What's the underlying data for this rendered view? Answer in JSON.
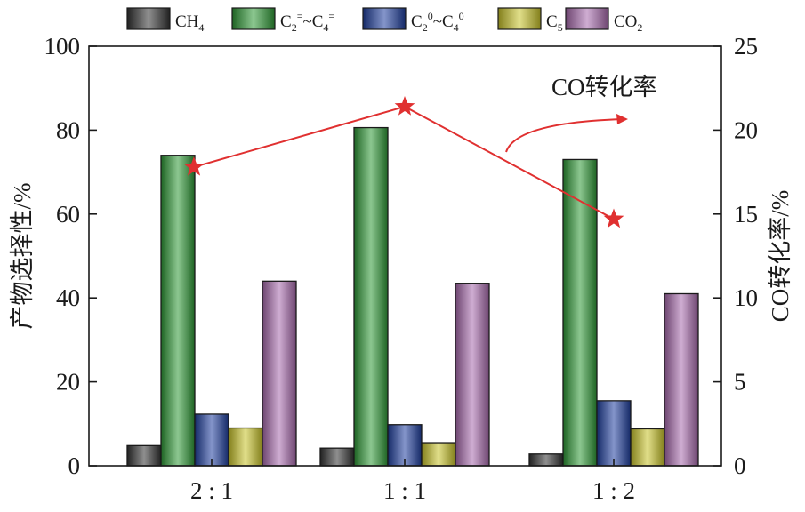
{
  "chart_data": {
    "type": "bar",
    "categories": [
      "2 : 1",
      "1 : 1",
      "1 : 2"
    ],
    "series": [
      {
        "name": "CH4",
        "legend_main": "CH",
        "legend_sub": "4",
        "legend_sup": "",
        "legend_tail": "",
        "values": [
          4.8,
          4.2,
          2.8
        ],
        "color": "#333333"
      },
      {
        "name": "C2=~C4=",
        "legend_main": "C",
        "legend_sub": "2",
        "legend_sup": "=",
        "legend_tail": "~C4=",
        "values": [
          74.0,
          80.6,
          73.0
        ],
        "color": "#2e9a36"
      },
      {
        "name": "C20~C40",
        "legend_main": "C",
        "legend_sub": "2",
        "legend_sup": "0",
        "legend_tail": "~C40",
        "values": [
          12.3,
          9.8,
          15.5
        ],
        "color": "#1f3f9e"
      },
      {
        "name": "C5+",
        "legend_main": "C",
        "legend_sub": "5+",
        "legend_sup": "",
        "legend_tail": "",
        "values": [
          9.0,
          5.5,
          8.8
        ],
        "color": "#c9c42a"
      },
      {
        "name": "CO2",
        "legend_main": "CO",
        "legend_sub": "2",
        "legend_sup": "",
        "legend_tail": "",
        "values": [
          44.0,
          43.5,
          41.0
        ],
        "color": "#a86aad"
      }
    ],
    "conversion": {
      "name": "CO转化率",
      "values": [
        17.8,
        21.4,
        14.7
      ],
      "color": "#e03030"
    },
    "ylabel": "产物选择性/%",
    "ylabel2": "CO转化率/%",
    "ylim": [
      0,
      100
    ],
    "ylim2": [
      0,
      25
    ],
    "yticks": [
      0,
      20,
      40,
      60,
      80,
      100
    ],
    "yticks2": [
      0,
      5,
      10,
      15,
      20,
      25
    ],
    "annotation": "CO转化率",
    "legend_position": "top"
  }
}
